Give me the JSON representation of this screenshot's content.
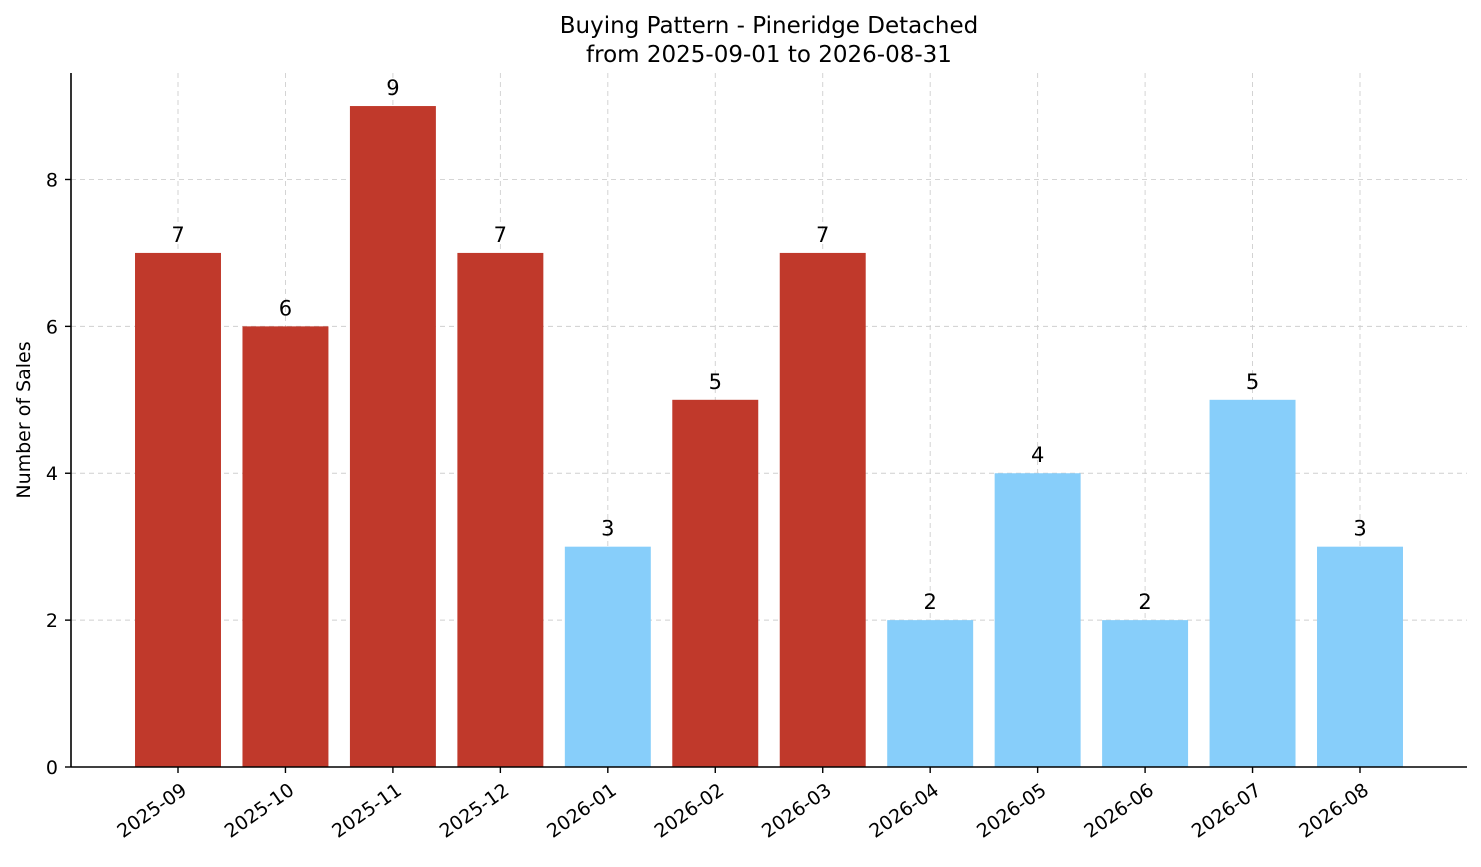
{
  "chart_data": {
    "type": "bar",
    "title": "Buying Pattern - Pineridge Detached",
    "subtitle": "from 2025-09-01 to 2026-08-31",
    "xlabel": "",
    "ylabel": "Number of Sales",
    "categories": [
      "2025-09",
      "2025-10",
      "2025-11",
      "2025-12",
      "2026-01",
      "2026-02",
      "2026-03",
      "2026-04",
      "2026-05",
      "2026-06",
      "2026-07",
      "2026-08"
    ],
    "values": [
      7,
      6,
      9,
      7,
      3,
      5,
      7,
      2,
      4,
      2,
      5,
      3
    ],
    "bar_colors": [
      "#c0392b",
      "#c0392b",
      "#c0392b",
      "#c0392b",
      "#87cefa",
      "#c0392b",
      "#c0392b",
      "#87cefa",
      "#87cefa",
      "#87cefa",
      "#87cefa",
      "#87cefa"
    ],
    "data_labels": [
      "7",
      "6",
      "9",
      "7",
      "3",
      "5",
      "7",
      "2",
      "4",
      "2",
      "5",
      "3"
    ],
    "yticks": [
      "0",
      "2",
      "4",
      "6",
      "8"
    ],
    "ylim": [
      0,
      9.45
    ],
    "grid": true,
    "legend": "none"
  }
}
